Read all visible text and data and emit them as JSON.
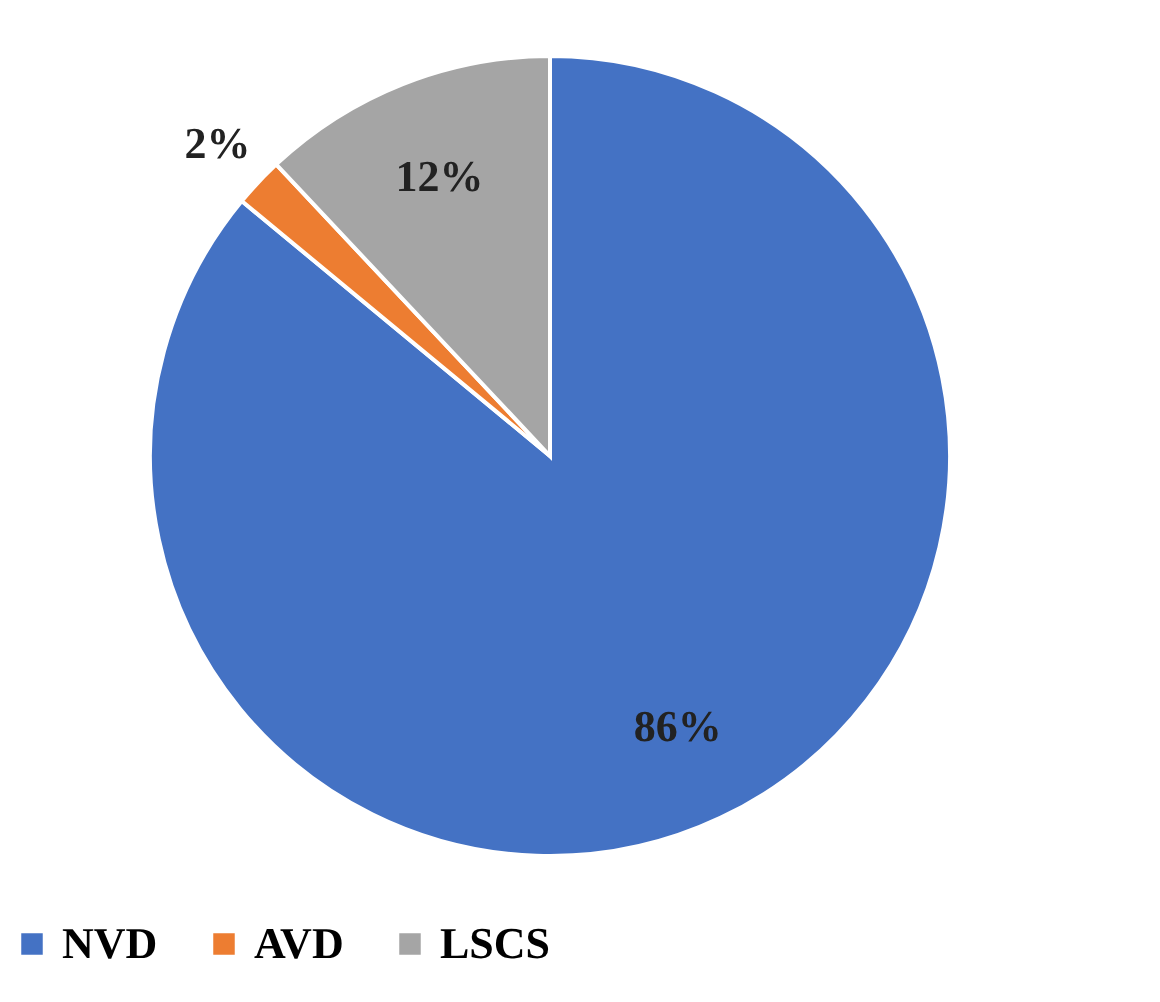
{
  "chart_data": {
    "type": "pie",
    "categories": [
      "NVD",
      "AVD",
      "LSCS"
    ],
    "values": [
      86,
      2,
      12
    ],
    "colors": [
      "#4472c4",
      "#ed7d31",
      "#a5a5a5"
    ],
    "value_labels": [
      "86%",
      "2%",
      "12%"
    ],
    "legend": "bottom"
  }
}
